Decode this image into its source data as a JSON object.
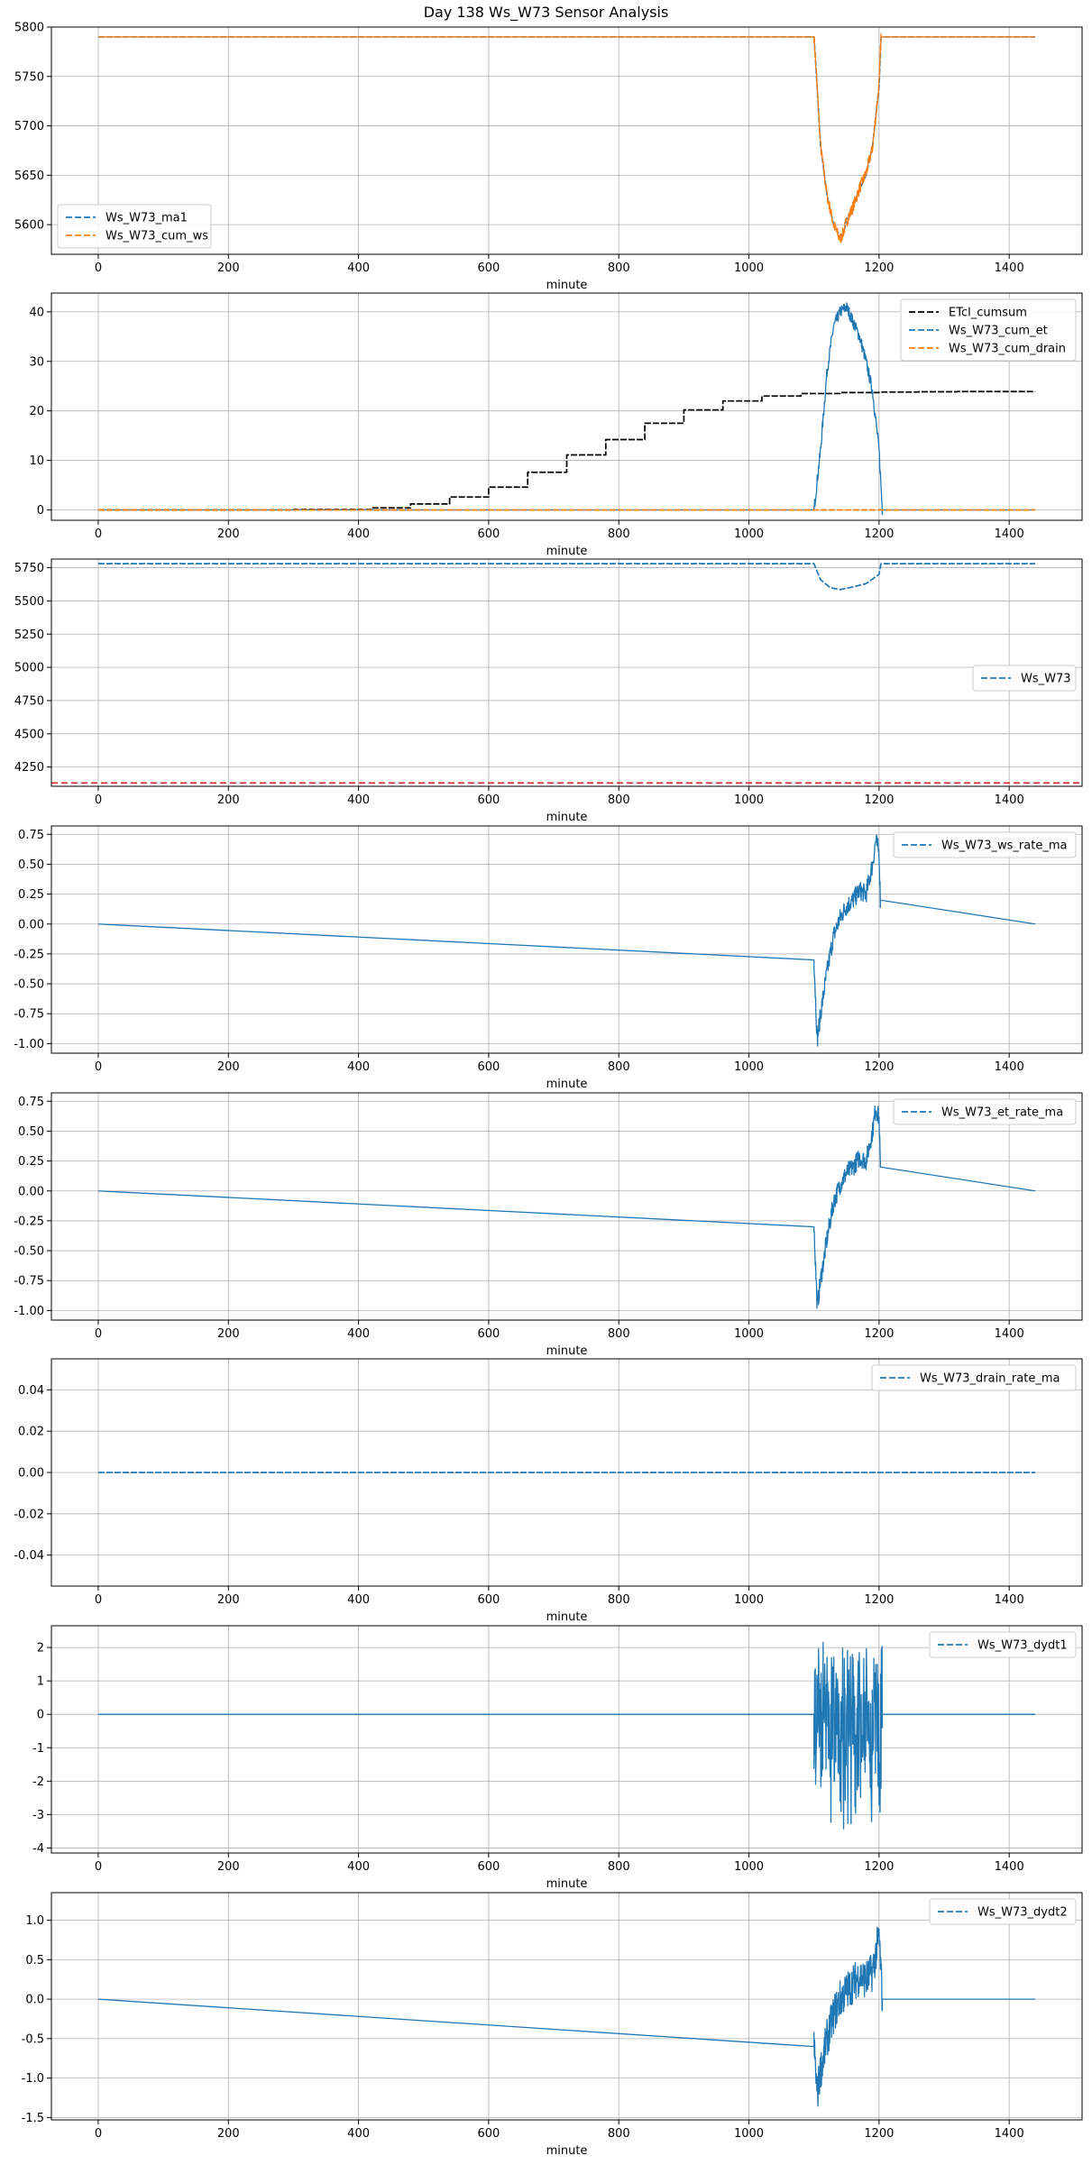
{
  "figure": {
    "title": "Day 138 Ws_W73 Sensor Analysis"
  },
  "colors": {
    "blue": "#1f77b4",
    "orange": "#ff7f0e",
    "black": "#000000",
    "red": "#d62728",
    "grid": "#b0b0b0"
  },
  "chart_data": [
    {
      "type": "line",
      "xlabel": "minute",
      "xlim": [
        -72,
        1512
      ],
      "ylim": [
        5570,
        5800
      ],
      "xticks": [
        0,
        200,
        400,
        600,
        800,
        1000,
        1200,
        1400
      ],
      "yticks": [
        5600,
        5650,
        5700,
        5750,
        5800
      ],
      "yticklabels": [
        "5600",
        "5650",
        "5700",
        "5750",
        "5800"
      ],
      "grid": true,
      "legend_loc": "lower-left",
      "series": [
        {
          "name": "Ws_W73_ma1",
          "color": "#1f77b4",
          "style": "dashed",
          "x": [
            0,
            1100,
            1103,
            1110,
            1120,
            1130,
            1140,
            1145,
            1150,
            1160,
            1170,
            1180,
            1190,
            1200,
            1203,
            1440
          ],
          "y": [
            5790,
            5790,
            5760,
            5680,
            5630,
            5600,
            5588,
            5590,
            5605,
            5620,
            5635,
            5650,
            5680,
            5740,
            5790,
            5790
          ]
        },
        {
          "name": "Ws_W73_cum_ws",
          "color": "#ff7f0e",
          "style": "dashed",
          "x": [
            0,
            1100,
            1103,
            1110,
            1120,
            1130,
            1140,
            1145,
            1150,
            1160,
            1170,
            1180,
            1190,
            1200,
            1203,
            1440
          ],
          "y": [
            5790,
            5790,
            5760,
            5680,
            5630,
            5600,
            5585,
            5592,
            5603,
            5618,
            5637,
            5652,
            5678,
            5742,
            5790,
            5790
          ],
          "noise": 6,
          "noise_range": [
            1100,
            1203
          ]
        }
      ]
    },
    {
      "type": "line",
      "xlabel": "minute",
      "xlim": [
        -72,
        1512
      ],
      "ylim": [
        -2.1,
        43.8
      ],
      "xticks": [
        0,
        200,
        400,
        600,
        800,
        1000,
        1200,
        1400
      ],
      "yticks": [
        0,
        10,
        20,
        30,
        40
      ],
      "yticklabels": [
        "0",
        "10",
        "20",
        "30",
        "40"
      ],
      "grid": true,
      "legend_loc": "top-right",
      "series": [
        {
          "name": "ETcl_cumsum",
          "color": "#000000",
          "style": "dashed",
          "x": [
            0,
            300,
            420,
            480,
            540,
            600,
            660,
            720,
            780,
            840,
            900,
            960,
            1020,
            1080,
            1140,
            1200,
            1260,
            1320,
            1440
          ],
          "y": [
            0,
            0.1,
            0.4,
            1.2,
            2.6,
            4.6,
            7.6,
            11.1,
            14.2,
            17.5,
            20.2,
            22.0,
            23.0,
            23.5,
            23.7,
            23.8,
            23.85,
            23.9,
            23.9
          ],
          "step": true
        },
        {
          "name": "Ws_W73_cum_et",
          "color": "#1f77b4",
          "style": "dashed",
          "x": [
            0,
            1100,
            1110,
            1120,
            1130,
            1140,
            1150,
            1160,
            1170,
            1180,
            1190,
            1200,
            1205,
            1440
          ],
          "y": [
            0,
            0,
            12,
            28,
            37,
            40,
            41,
            38,
            35,
            30,
            24,
            12,
            0,
            0
          ],
          "noise": 1.2,
          "noise_range": [
            1100,
            1205
          ]
        },
        {
          "name": "Ws_W73_cum_drain",
          "color": "#ff7f0e",
          "style": "dashed",
          "x": [
            0,
            1440
          ],
          "y": [
            0,
            0
          ]
        }
      ]
    },
    {
      "type": "line",
      "xlabel": "minute",
      "xlim": [
        -72,
        1512
      ],
      "ylim": [
        4105,
        5815
      ],
      "xticks": [
        0,
        200,
        400,
        600,
        800,
        1000,
        1200,
        1400
      ],
      "yticks": [
        4250,
        4500,
        4750,
        5000,
        5250,
        5500,
        5750
      ],
      "yticklabels": [
        "4250",
        "4500",
        "4750",
        "5000",
        "5250",
        "5500",
        "5750"
      ],
      "grid": true,
      "legend_loc": "center-right",
      "hline": {
        "y": 4130,
        "color": "#d62728",
        "style": "dashed"
      },
      "series": [
        {
          "name": "Ws_W73",
          "color": "#1f77b4",
          "style": "dashed",
          "x": [
            0,
            1100,
            1110,
            1125,
            1140,
            1160,
            1180,
            1200,
            1203,
            1440
          ],
          "y": [
            5780,
            5780,
            5660,
            5600,
            5585,
            5605,
            5630,
            5700,
            5780,
            5780
          ]
        }
      ]
    },
    {
      "type": "line",
      "xlabel": "minute",
      "xlim": [
        -72,
        1512
      ],
      "ylim": [
        -1.08,
        0.82
      ],
      "xticks": [
        0,
        200,
        400,
        600,
        800,
        1000,
        1200,
        1400
      ],
      "yticks": [
        -1.0,
        -0.75,
        -0.5,
        -0.25,
        0.0,
        0.25,
        0.5,
        0.75
      ],
      "yticklabels": [
        "-1.00",
        "-0.75",
        "-0.50",
        "-0.25",
        "0.00",
        "0.25",
        "0.50",
        "0.75"
      ],
      "grid": true,
      "legend_loc": "top-right",
      "series": [
        {
          "name": "Ws_W73_ws_rate_ma",
          "color": "#1f77b4",
          "style": "dashed",
          "x": [
            0,
            1097,
            1100,
            1105,
            1110,
            1120,
            1130,
            1140,
            1150,
            1160,
            1170,
            1180,
            1190,
            1195,
            1200,
            1203,
            1440
          ],
          "y": [
            0,
            0,
            -0.3,
            -0.97,
            -0.75,
            -0.4,
            -0.1,
            0.05,
            0.15,
            0.2,
            0.28,
            0.25,
            0.5,
            0.7,
            0.6,
            0,
            0
          ],
          "noise": 0.08,
          "noise_range": [
            1100,
            1202
          ]
        }
      ]
    },
    {
      "type": "line",
      "xlabel": "minute",
      "xlim": [
        -72,
        1512
      ],
      "ylim": [
        -1.08,
        0.82
      ],
      "xticks": [
        0,
        200,
        400,
        600,
        800,
        1000,
        1200,
        1400
      ],
      "yticks": [
        -1.0,
        -0.75,
        -0.5,
        -0.25,
        0.0,
        0.25,
        0.5,
        0.75
      ],
      "yticklabels": [
        "-1.00",
        "-0.75",
        "-0.50",
        "-0.25",
        "0.00",
        "0.25",
        "0.50",
        "0.75"
      ],
      "grid": true,
      "legend_loc": "top-right",
      "series": [
        {
          "name": "Ws_W73_et_rate_ma",
          "color": "#1f77b4",
          "style": "dashed",
          "x": [
            0,
            1097,
            1100,
            1105,
            1110,
            1120,
            1130,
            1140,
            1150,
            1160,
            1170,
            1180,
            1190,
            1195,
            1200,
            1203,
            1440
          ],
          "y": [
            0,
            0,
            -0.3,
            -0.97,
            -0.75,
            -0.4,
            -0.1,
            0.05,
            0.15,
            0.2,
            0.28,
            0.25,
            0.5,
            0.7,
            0.6,
            0,
            0
          ],
          "noise": 0.08,
          "noise_range": [
            1100,
            1202
          ]
        }
      ]
    },
    {
      "type": "line",
      "xlabel": "minute",
      "xlim": [
        -72,
        1512
      ],
      "ylim": [
        -0.055,
        0.055
      ],
      "xticks": [
        0,
        200,
        400,
        600,
        800,
        1000,
        1200,
        1400
      ],
      "yticks": [
        -0.04,
        -0.02,
        0.0,
        0.02,
        0.04
      ],
      "yticklabels": [
        "-0.04",
        "-0.02",
        "0.00",
        "0.02",
        "0.04"
      ],
      "grid": true,
      "legend_loc": "top-right",
      "series": [
        {
          "name": "Ws_W73_drain_rate_ma",
          "color": "#1f77b4",
          "style": "dashed",
          "x": [
            0,
            1440
          ],
          "y": [
            0,
            0
          ]
        }
      ]
    },
    {
      "type": "line",
      "xlabel": "minute",
      "xlim": [
        -72,
        1512
      ],
      "ylim": [
        -4.15,
        2.65
      ],
      "xticks": [
        0,
        200,
        400,
        600,
        800,
        1000,
        1200,
        1400
      ],
      "yticks": [
        -4,
        -3,
        -2,
        -1,
        0,
        1,
        2
      ],
      "yticklabels": [
        "-4",
        "-3",
        "-2",
        "-1",
        "0",
        "1",
        "2"
      ],
      "grid": true,
      "legend_loc": "top-right",
      "series": [
        {
          "name": "Ws_W73_dydt1",
          "color": "#1f77b4",
          "style": "dashed",
          "x": [
            0,
            1100,
            1440
          ],
          "y": [
            0,
            0,
            0
          ],
          "noise": 2.2,
          "noise_range": [
            1100,
            1205
          ],
          "noise_min": -3.9,
          "noise_max": 2.3
        }
      ]
    },
    {
      "type": "line",
      "xlabel": "minute",
      "xlim": [
        -72,
        1512
      ],
      "ylim": [
        -1.53,
        1.35
      ],
      "xticks": [
        0,
        200,
        400,
        600,
        800,
        1000,
        1200,
        1400
      ],
      "yticks": [
        -1.5,
        -1.0,
        -0.5,
        0.0,
        0.5,
        1.0
      ],
      "yticklabels": [
        "-1.5",
        "-1.0",
        "-0.5",
        "0.0",
        "0.5",
        "1.0"
      ],
      "grid": true,
      "legend_loc": "top-right",
      "series": [
        {
          "name": "Ws_W73_dydt2",
          "color": "#1f77b4",
          "style": "dashed",
          "x": [
            0,
            1097,
            1100,
            1105,
            1110,
            1120,
            1130,
            1140,
            1150,
            1160,
            1170,
            1180,
            1190,
            1200,
            1205,
            1440
          ],
          "y": [
            0,
            0,
            -0.6,
            -1.2,
            -0.9,
            -0.5,
            -0.2,
            0.0,
            0.1,
            0.2,
            0.3,
            0.25,
            0.35,
            0.8,
            0,
            0
          ],
          "noise": 0.25,
          "noise_range": [
            1100,
            1205
          ]
        }
      ]
    }
  ]
}
